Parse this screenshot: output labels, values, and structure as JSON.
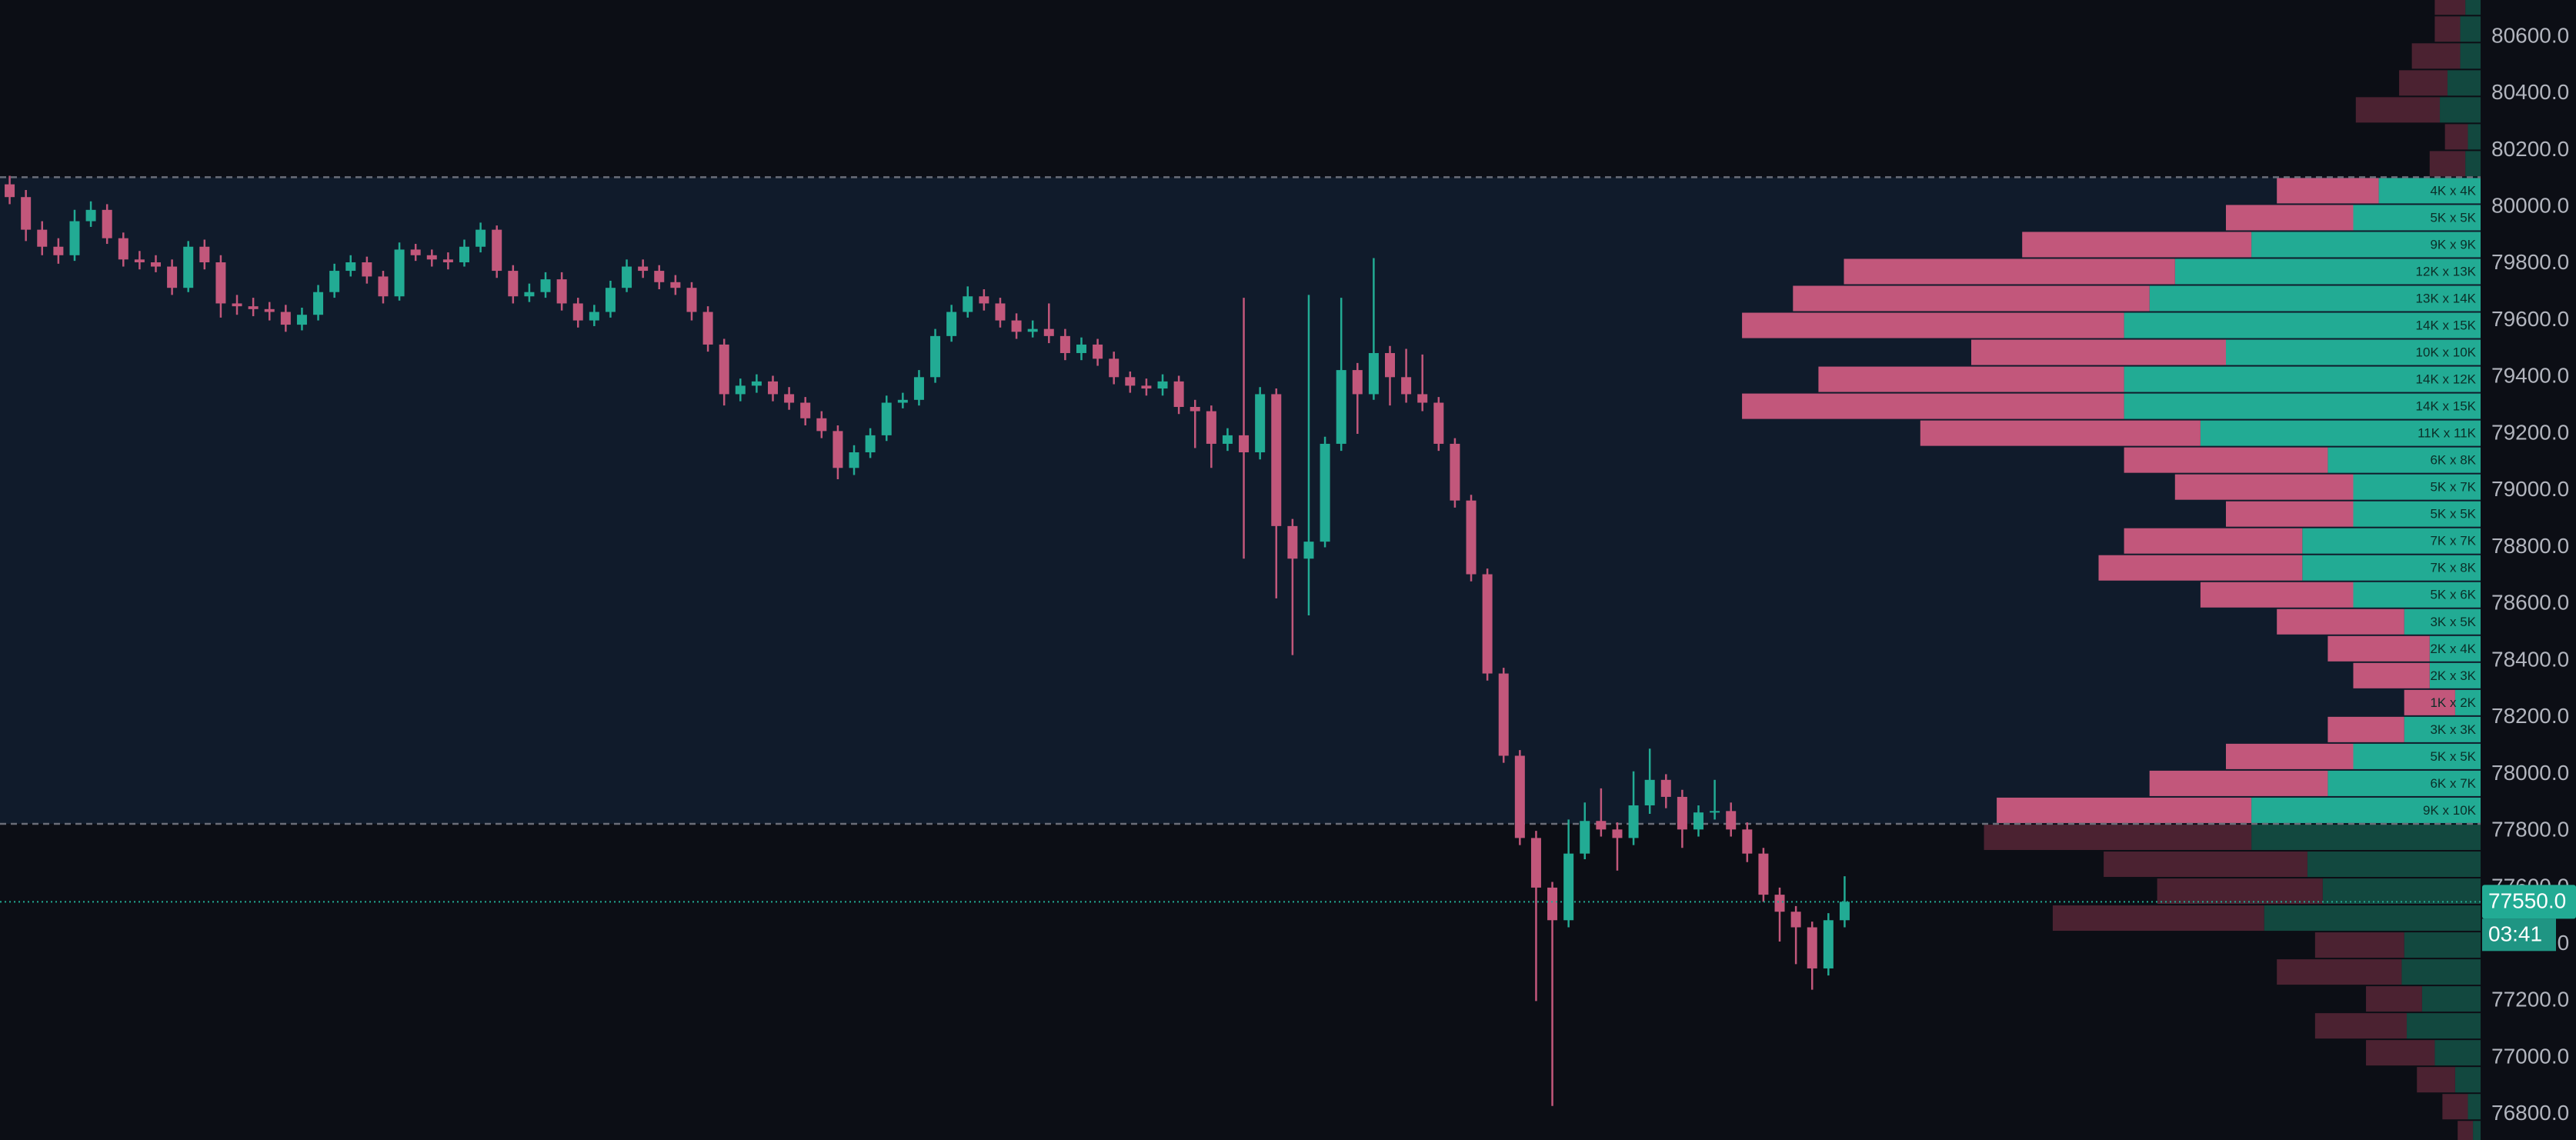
{
  "chart_data": {
    "type": "candlestick",
    "ylim": [
      76710,
      80730
    ],
    "yticks": [
      {
        "value": 76800,
        "label": "76800.0"
      },
      {
        "value": 77000,
        "label": "77000.0"
      },
      {
        "value": 77200,
        "label": "77200.0"
      },
      {
        "value": 77400,
        "label": "77400.0"
      },
      {
        "value": 77600,
        "label": "77600.0"
      },
      {
        "value": 77800,
        "label": "77800.0"
      },
      {
        "value": 78000,
        "label": "78000.0"
      },
      {
        "value": 78200,
        "label": "78200.0"
      },
      {
        "value": 78400,
        "label": "78400.0"
      },
      {
        "value": 78600,
        "label": "78600.0"
      },
      {
        "value": 78800,
        "label": "78800.0"
      },
      {
        "value": 79000,
        "label": "79000.0"
      },
      {
        "value": 79200,
        "label": "79200.0"
      },
      {
        "value": 79400,
        "label": "79400.0"
      },
      {
        "value": 79600,
        "label": "79600.0"
      },
      {
        "value": 79800,
        "label": "79800.0"
      },
      {
        "value": 80000,
        "label": "80000.0"
      },
      {
        "value": 80200,
        "label": "80200.0"
      },
      {
        "value": 80400,
        "label": "80400.0"
      },
      {
        "value": 80600,
        "label": "80600.0"
      }
    ],
    "up_color": "#22ab94",
    "down_color": "#c2577b",
    "candles": {
      "open": [
        80080,
        80035,
        79920,
        79860,
        79830,
        79950,
        79990,
        79890,
        79815,
        79805,
        79790,
        79715,
        79860,
        79805,
        79660,
        79650,
        79640,
        79630,
        79585,
        79620,
        79700,
        79775,
        79805,
        79755,
        79685,
        79850,
        79830,
        79815,
        79805,
        79860,
        79920,
        79775,
        79685,
        79700,
        79745,
        79660,
        79600,
        79630,
        79715,
        79790,
        79775,
        79735,
        79715,
        79630,
        79515,
        79340,
        79370,
        79385,
        79340,
        79310,
        79255,
        79210,
        79080,
        79135,
        79195,
        79310,
        79320,
        79400,
        79545,
        79630,
        79685,
        79660,
        79600,
        79560,
        79570,
        79545,
        79485,
        79515,
        79465,
        79400,
        79370,
        79360,
        79385,
        79295,
        79280,
        79165,
        79195,
        79135,
        79340,
        78875,
        78760,
        78820,
        79165,
        79425,
        79340,
        79485,
        79400,
        79340,
        79310,
        79165,
        78965,
        78705,
        78355,
        78065,
        77775,
        77600,
        77485,
        77720,
        77835,
        77805,
        77775,
        77890,
        77980,
        77920,
        77805,
        77865,
        77870,
        77805,
        77720,
        77575,
        77515,
        77460,
        77315,
        77485
      ],
      "high": [
        80110,
        80060,
        79950,
        79890,
        79990,
        80020,
        80010,
        79910,
        79845,
        79830,
        79815,
        79880,
        79885,
        79830,
        79690,
        79680,
        79665,
        79655,
        79645,
        79725,
        79800,
        79830,
        79825,
        79775,
        79875,
        79870,
        79850,
        79840,
        79885,
        79945,
        79935,
        79795,
        79730,
        79770,
        79770,
        79680,
        79655,
        79740,
        79815,
        79815,
        79795,
        79760,
        79735,
        79650,
        79535,
        79395,
        79410,
        79405,
        79365,
        79330,
        79280,
        79230,
        79160,
        79220,
        79335,
        79345,
        79425,
        79570,
        79655,
        79720,
        79710,
        79680,
        79625,
        79600,
        79660,
        79570,
        79540,
        79535,
        79490,
        79420,
        79395,
        79410,
        79405,
        79320,
        79300,
        79220,
        79680,
        79365,
        79360,
        78900,
        79690,
        79190,
        79680,
        79450,
        79820,
        79510,
        79500,
        79480,
        79330,
        79185,
        78985,
        78725,
        78375,
        78085,
        77800,
        77620,
        77840,
        77900,
        77950,
        77830,
        78010,
        78090,
        78000,
        77945,
        77890,
        77980,
        77900,
        77830,
        77740,
        77600,
        77535,
        77480,
        77510,
        77640
      ],
      "low": [
        80010,
        79880,
        79830,
        79800,
        79810,
        79930,
        79870,
        79790,
        79780,
        79770,
        79690,
        79700,
        79780,
        79610,
        79620,
        79615,
        79600,
        79560,
        79565,
        79600,
        79680,
        79755,
        79730,
        79660,
        79670,
        79810,
        79790,
        79780,
        79790,
        79840,
        79750,
        79660,
        79665,
        79680,
        79635,
        79575,
        79580,
        79610,
        79700,
        79750,
        79710,
        79690,
        79600,
        79490,
        79300,
        79315,
        79345,
        79315,
        79285,
        79230,
        79185,
        79040,
        79055,
        79115,
        79175,
        79290,
        79300,
        79380,
        79525,
        79610,
        79635,
        79575,
        79535,
        79540,
        79520,
        79460,
        79460,
        79440,
        79375,
        79345,
        79335,
        79335,
        79270,
        79150,
        79080,
        79140,
        78760,
        79110,
        78620,
        78420,
        78560,
        78800,
        79140,
        79200,
        79320,
        79300,
        79310,
        79280,
        79140,
        78940,
        78680,
        78330,
        78040,
        77750,
        77200,
        76830,
        77460,
        77700,
        77780,
        77660,
        77750,
        77860,
        77880,
        77740,
        77780,
        77840,
        77780,
        77690,
        77550,
        77410,
        77330,
        77240,
        77290,
        77460
      ],
      "close": [
        80035,
        79920,
        79860,
        79830,
        79950,
        79990,
        79890,
        79815,
        79805,
        79790,
        79715,
        79860,
        79805,
        79660,
        79650,
        79640,
        79630,
        79585,
        79620,
        79700,
        79775,
        79805,
        79755,
        79685,
        79850,
        79830,
        79815,
        79805,
        79860,
        79920,
        79775,
        79685,
        79700,
        79745,
        79660,
        79600,
        79630,
        79715,
        79790,
        79775,
        79735,
        79715,
        79630,
        79515,
        79340,
        79370,
        79385,
        79340,
        79310,
        79255,
        79210,
        79080,
        79135,
        79195,
        79310,
        79320,
        79400,
        79545,
        79630,
        79685,
        79660,
        79600,
        79560,
        79570,
        79545,
        79485,
        79515,
        79465,
        79400,
        79370,
        79360,
        79385,
        79295,
        79280,
        79165,
        79195,
        79135,
        79340,
        78875,
        78760,
        78820,
        79165,
        79425,
        79340,
        79485,
        79400,
        79340,
        79310,
        79165,
        78965,
        78705,
        78355,
        78065,
        77775,
        77600,
        77485,
        77720,
        77835,
        77805,
        77775,
        77890,
        77980,
        77920,
        77805,
        77865,
        77870,
        77805,
        77720,
        77575,
        77515,
        77460,
        77315,
        77485,
        77550
      ]
    },
    "current_price": {
      "value": 77550,
      "label": "77550.0"
    },
    "countdown": "03:41",
    "value_area": [
      77825,
      80105
    ],
    "profile": {
      "levels": [
        80770,
        80675,
        80580,
        80485,
        80390,
        80295,
        80200,
        80105,
        80010,
        79915,
        79820,
        79725,
        79630,
        79535,
        79440,
        79345,
        79250,
        79155,
        79060,
        78965,
        78870,
        78775,
        78680,
        78585,
        78490,
        78395,
        78300,
        78205,
        78110,
        78015,
        77920,
        77825,
        77730,
        77635,
        77540,
        77445,
        77350,
        77255,
        77160,
        77065,
        76970,
        76875,
        76780
      ],
      "buy": [
        0.6,
        0.8,
        0.8,
        1.3,
        1.6,
        0.5,
        0.6,
        4,
        5,
        9,
        12,
        13,
        14,
        10,
        14,
        14,
        11,
        6,
        5,
        5,
        7,
        7,
        5,
        3,
        2,
        2,
        1,
        3,
        5,
        6,
        9,
        9,
        6.8,
        6.2,
        8.5,
        3,
        3.1,
        2.3,
        2.9,
        1.8,
        1,
        0.5,
        0.3
      ],
      "sell": [
        1.2,
        1,
        1.9,
        1.9,
        3.3,
        0.9,
        1.4,
        4,
        5,
        9,
        13,
        14,
        15,
        10,
        12,
        15,
        11,
        8,
        7,
        5,
        7,
        8,
        6,
        5,
        4,
        3,
        2,
        3,
        5,
        7,
        10,
        10.5,
        8,
        6.5,
        8.3,
        3.5,
        4.9,
        2.2,
        3.6,
        2.7,
        1.5,
        1,
        0.6
      ],
      "labels": [
        null,
        null,
        null,
        null,
        null,
        null,
        null,
        "4K x 4K",
        "5K x 5K",
        "9K x 9K",
        "12K x 13K",
        "13K x 14K",
        "14K x 15K",
        "10K x 10K",
        "14K x 12K",
        "14K x 15K",
        "11K x 11K",
        "6K x 8K",
        "5K x 7K",
        "5K x 5K",
        "7K x 7K",
        "7K x 8K",
        "5K x 6K",
        "3K x 5K",
        "2K x 4K",
        "2K x 3K",
        "1K x 2K",
        "3K x 3K",
        "5K x 5K",
        "6K x 7K",
        "9K x 10K",
        null,
        null,
        null,
        null,
        null,
        null,
        null,
        null,
        null,
        null,
        null,
        null
      ],
      "buy_color": "#22ab94",
      "sell_color": "#c2577b",
      "outside_buy_color": "#12483f",
      "outside_sell_color": "#4b2231"
    }
  }
}
